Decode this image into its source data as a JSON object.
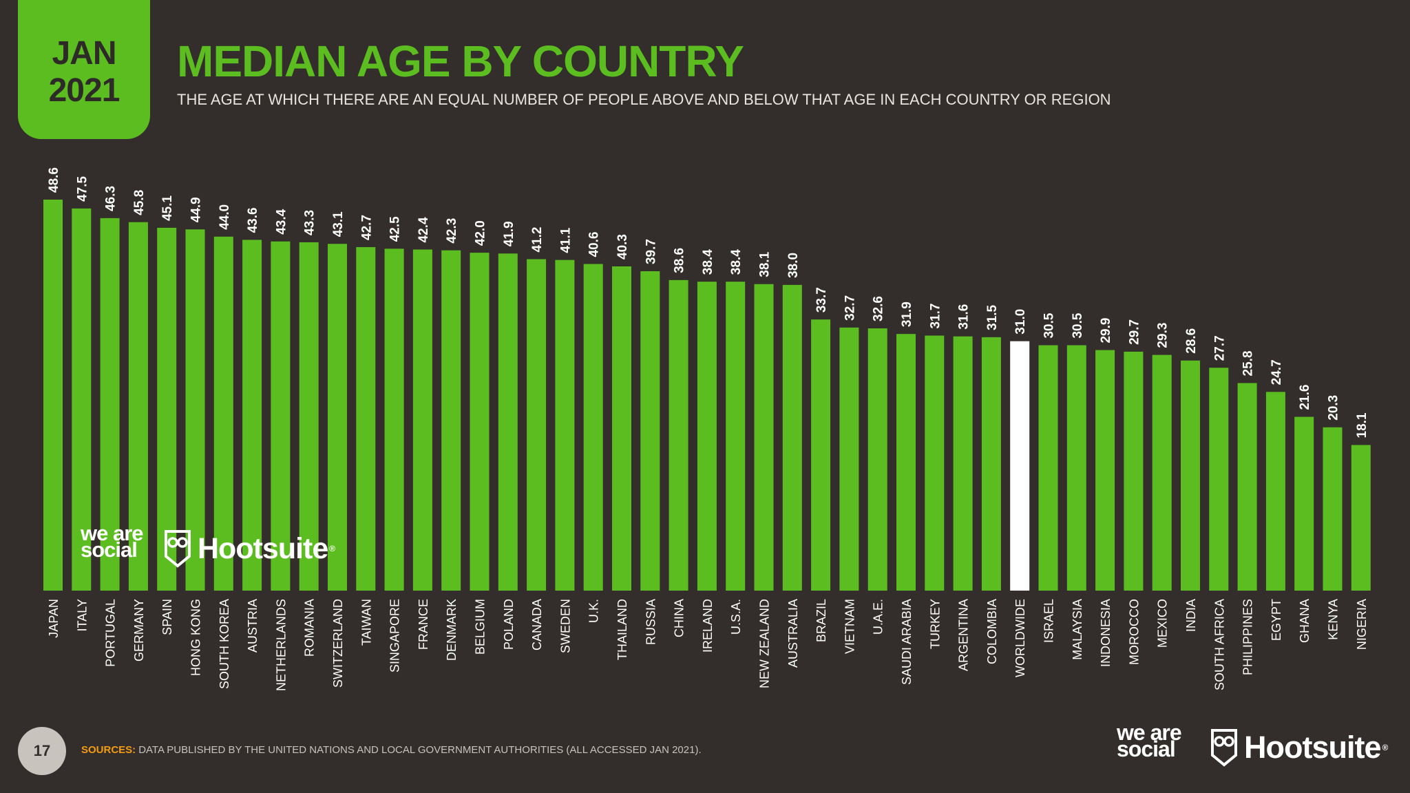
{
  "badge": {
    "month": "JAN",
    "year": "2021"
  },
  "header": {
    "title": "MEDIAN AGE BY COUNTRY",
    "subtitle": "THE AGE AT WHICH THERE ARE AN EQUAL NUMBER OF PEOPLE ABOVE AND BELOW THAT AGE IN EACH COUNTRY OR REGION"
  },
  "chart_data": {
    "type": "bar",
    "title": "MEDIAN AGE BY COUNTRY",
    "xlabel": "",
    "ylabel": "",
    "ylim": [
      0,
      48.6
    ],
    "highlight_category": "WORLDWIDE",
    "categories": [
      "JAPAN",
      "ITALY",
      "PORTUGAL",
      "GERMANY",
      "SPAIN",
      "HONG KONG",
      "SOUTH KOREA",
      "AUSTRIA",
      "NETHERLANDS",
      "ROMANIA",
      "SWITZERLAND",
      "TAIWAN",
      "SINGAPORE",
      "FRANCE",
      "DENMARK",
      "BELGIUM",
      "POLAND",
      "CANADA",
      "SWEDEN",
      "U.K.",
      "THAILAND",
      "RUSSIA",
      "CHINA",
      "IRELAND",
      "U.S.A.",
      "NEW ZEALAND",
      "AUSTRALIA",
      "BRAZIL",
      "VIETNAM",
      "U.A.E.",
      "SAUDI ARABIA",
      "TURKEY",
      "ARGENTINA",
      "COLOMBIA",
      "WORLDWIDE",
      "ISRAEL",
      "MALAYSIA",
      "INDONESIA",
      "MOROCCO",
      "MEXICO",
      "INDIA",
      "SOUTH AFRICA",
      "PHILIPPINES",
      "EGYPT",
      "GHANA",
      "KENYA",
      "NIGERIA"
    ],
    "values": [
      48.6,
      47.5,
      46.3,
      45.8,
      45.1,
      44.9,
      44.0,
      43.6,
      43.4,
      43.3,
      43.1,
      42.7,
      42.5,
      42.4,
      42.3,
      42.0,
      41.9,
      41.2,
      41.1,
      40.6,
      40.3,
      39.7,
      38.6,
      38.4,
      38.4,
      38.1,
      38.0,
      33.7,
      32.7,
      32.6,
      31.9,
      31.7,
      31.6,
      31.5,
      31.0,
      30.5,
      30.5,
      29.9,
      29.7,
      29.3,
      28.6,
      27.7,
      25.8,
      24.7,
      21.6,
      20.3,
      18.1
    ]
  },
  "colors": {
    "background": "#332e2b",
    "bar": "#5cbd21",
    "highlight": "#ffffff",
    "label": "#ffffff"
  },
  "brand": {
    "wearesocial": "we are social",
    "hootsuite": "Hootsuite"
  },
  "footer": {
    "page_number": "17",
    "sources_label": "SOURCES:",
    "sources_text": "DATA PUBLISHED BY THE UNITED NATIONS AND LOCAL GOVERNMENT AUTHORITIES (ALL ACCESSED JAN 2021)."
  }
}
